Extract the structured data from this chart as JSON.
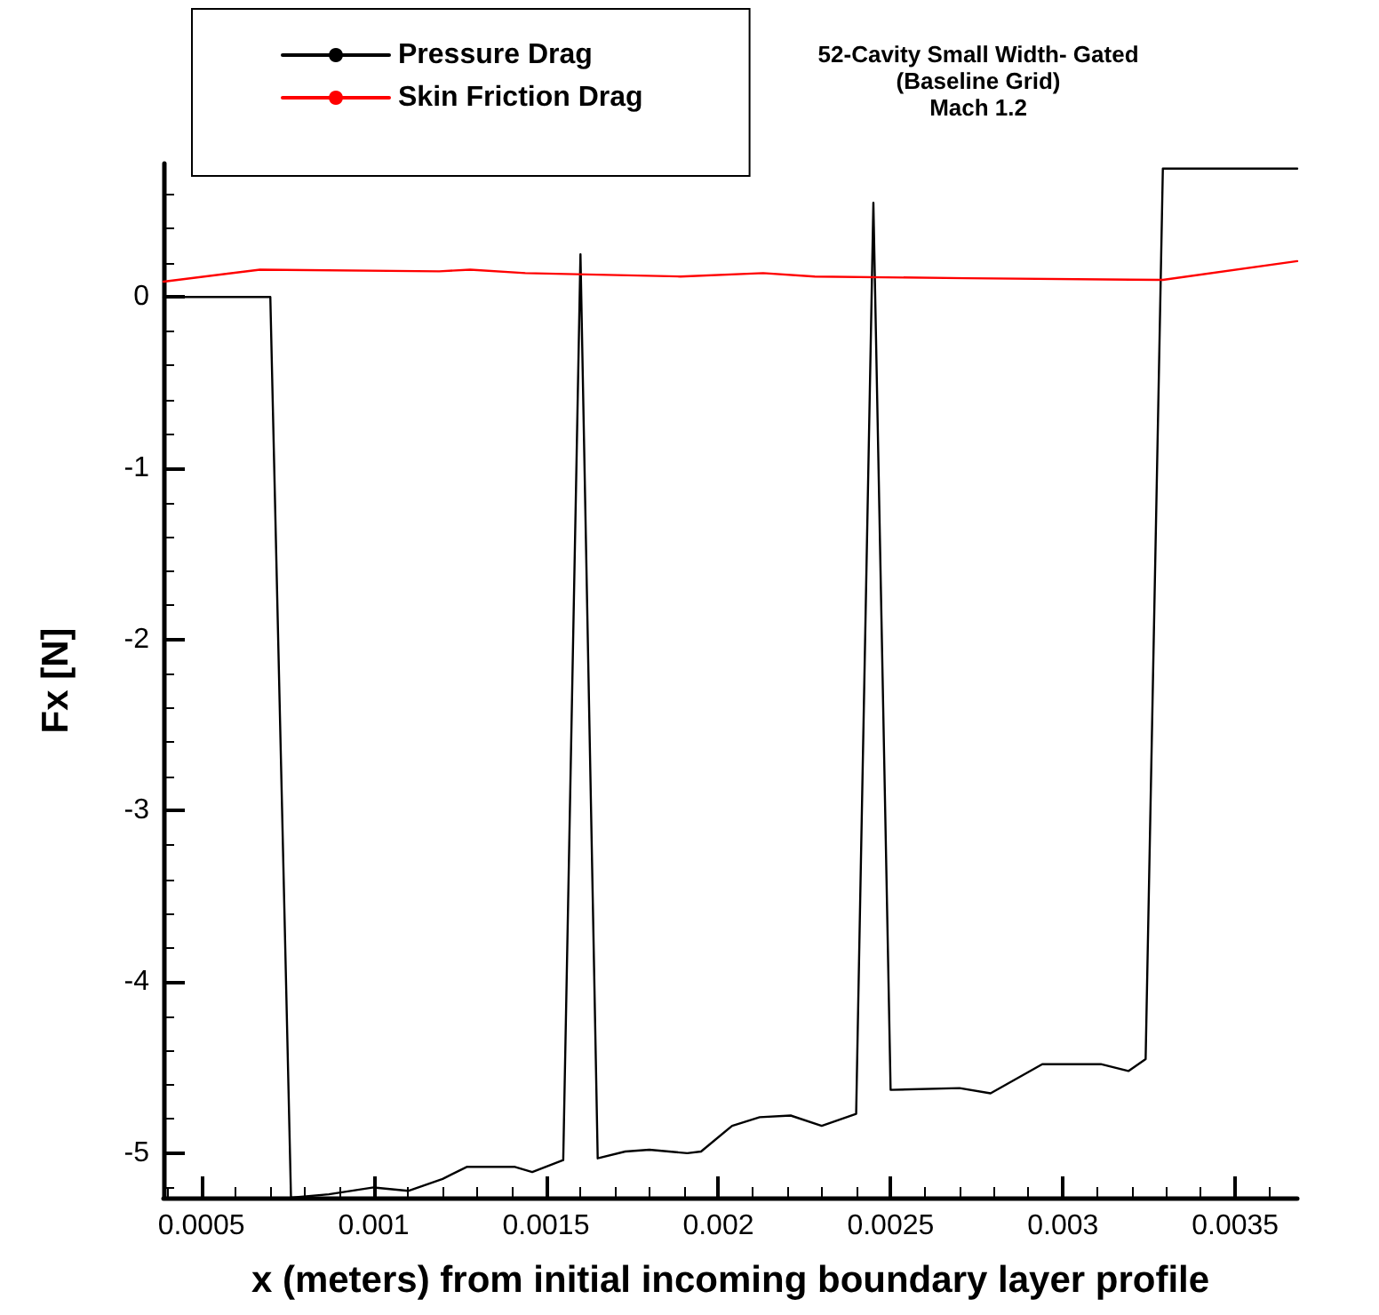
{
  "chart_data": {
    "type": "line",
    "title": "52-Cavity Small Width- Gated\n(Baseline Grid)\nMach 1.2",
    "xlabel": "x (meters) from initial incoming boundary layer profile",
    "ylabel": "Fx [N]",
    "xlim": [
      0.00039,
      0.00368
    ],
    "xticks": [
      0.0005,
      0.001,
      0.0015,
      0.002,
      0.0025,
      0.003,
      0.0035
    ],
    "ylim": [
      -5.26,
      0.78
    ],
    "yticks": [
      -5,
      -4,
      -3,
      -2,
      -1,
      0
    ],
    "legend": "top left",
    "grid": false,
    "marker": "none",
    "line_style": "solid",
    "series": [
      {
        "name": "Pressure Drag",
        "color": "#000000",
        "x": [
          0.00039,
          0.0007,
          0.00076,
          0.00087,
          0.001,
          0.0011,
          0.0012,
          0.00127,
          0.00141,
          0.00146,
          0.00155,
          0.0016,
          0.00165,
          0.00173,
          0.0018,
          0.00191,
          0.00195,
          0.00204,
          0.00212,
          0.00221,
          0.0023,
          0.0024,
          0.00245,
          0.0025,
          0.0027,
          0.00279,
          0.00294,
          0.00311,
          0.00319,
          0.00324,
          0.00329,
          0.00368
        ],
        "values": [
          0,
          0,
          -5.26,
          -5.24,
          -5.2,
          -5.22,
          -5.15,
          -5.08,
          -5.08,
          -5.11,
          -5.04,
          0.25,
          -5.03,
          -4.99,
          -4.98,
          -5.0,
          -4.99,
          -4.84,
          -4.79,
          -4.78,
          -4.84,
          -4.77,
          0.55,
          -4.63,
          -4.62,
          -4.65,
          -4.48,
          -4.48,
          -4.52,
          -4.45,
          0.75,
          0.75
        ]
      },
      {
        "name": "Skin Friction Drag",
        "color": "#ff0000",
        "x": [
          0.00039,
          0.00067,
          0.00119,
          0.00128,
          0.00144,
          0.00189,
          0.00213,
          0.00228,
          0.00272,
          0.00329,
          0.00368
        ],
        "values": [
          0.09,
          0.16,
          0.15,
          0.16,
          0.14,
          0.12,
          0.14,
          0.12,
          0.11,
          0.1,
          0.21
        ]
      }
    ]
  }
}
